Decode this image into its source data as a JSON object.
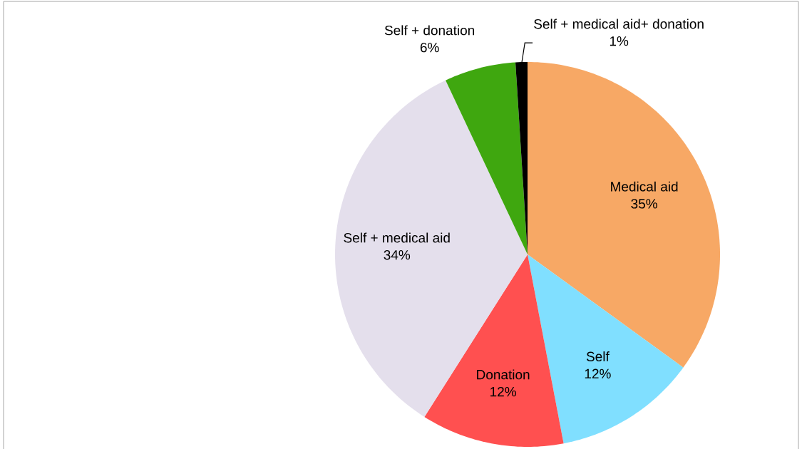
{
  "chart_data": {
    "type": "pie",
    "categories": [
      "Medical aid",
      "Self",
      "Donation",
      "Self + medical aid",
      "Self + donation",
      "Self + medical aid+ donation"
    ],
    "values": [
      35,
      12,
      12,
      34,
      6,
      1
    ],
    "value_labels": [
      "35%",
      "12%",
      "12%",
      "34%",
      "6%",
      "1%"
    ],
    "colors": [
      "#f7a865",
      "#80dfff",
      "#ff5050",
      "#e4dfec",
      "#3fa70f",
      "#000000"
    ]
  }
}
